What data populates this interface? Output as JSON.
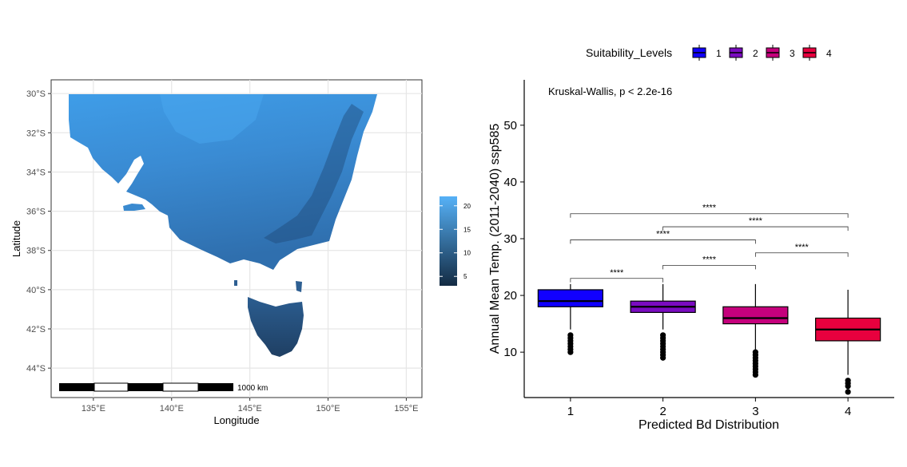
{
  "chart_data": [
    {
      "type": "heatmap",
      "title": "",
      "xlabel": "Longitude",
      "ylabel": "Latitude",
      "x_ticks": [
        "135°E",
        "140°E",
        "145°E",
        "150°E",
        "155°E"
      ],
      "x_tick_values": [
        135,
        140,
        145,
        150,
        155
      ],
      "y_ticks": [
        "30°S",
        "32°S",
        "34°S",
        "36°S",
        "38°S",
        "40°S",
        "42°S",
        "44°S"
      ],
      "y_tick_values": [
        -30,
        -32,
        -34,
        -36,
        -38,
        -40,
        -42,
        -44
      ],
      "xlim": [
        132.3,
        156.0
      ],
      "ylim": [
        -45.5,
        -29.3
      ],
      "grid": true,
      "legend": {
        "position": "right",
        "ticks": [
          "5",
          "10",
          "15",
          "20"
        ],
        "tick_values": [
          5,
          10,
          15,
          20
        ],
        "range": [
          3,
          22
        ],
        "color_low": "#132b43",
        "color_high": "#56b1f7"
      },
      "scalebar": {
        "label": "1000 km"
      }
    },
    {
      "type": "box",
      "title": "",
      "xlabel": "Predicted Bd Distribution",
      "ylabel": "Annual Mean Temp. (2011-2040) ssp585",
      "ylim": [
        2,
        58
      ],
      "y_ticks": [
        "10",
        "20",
        "30",
        "40",
        "50"
      ],
      "y_tick_values": [
        10,
        20,
        30,
        40,
        50
      ],
      "categories": [
        "1",
        "2",
        "3",
        "4"
      ],
      "annotation": "Kruskal-Wallis, p < 2.2e-16",
      "legend": {
        "title": "Suitability_Levels",
        "position": "top",
        "entries": [
          "1",
          "2",
          "3",
          "4"
        ]
      },
      "colors": [
        "#1100ff",
        "#7a0bc0",
        "#c5007c",
        "#e8003e"
      ],
      "boxes": [
        {
          "category": "1",
          "whisker_low": 14,
          "q1": 18,
          "median": 19,
          "q3": 21,
          "whisker_high": 22,
          "outliers": [
            13,
            12.5,
            12,
            11.5,
            11,
            10.5,
            10
          ]
        },
        {
          "category": "2",
          "whisker_low": 14,
          "q1": 17,
          "median": 18,
          "q3": 19,
          "whisker_high": 22,
          "outliers": [
            13,
            12.5,
            12,
            11.5,
            11,
            10.5,
            10,
            9.5,
            9
          ]
        },
        {
          "category": "3",
          "whisker_low": 10.5,
          "q1": 15,
          "median": 16,
          "q3": 18,
          "whisker_high": 22,
          "outliers": [
            10,
            9.5,
            9,
            8.5,
            8,
            7.5,
            7,
            6.5,
            6
          ]
        },
        {
          "category": "4",
          "whisker_low": 6,
          "q1": 12,
          "median": 14,
          "q3": 16,
          "whisker_high": 21,
          "outliers": [
            5,
            4.5,
            4,
            3
          ]
        }
      ],
      "comparisons": [
        {
          "from": "1",
          "to": "2",
          "y": 23,
          "label": "****"
        },
        {
          "from": "2",
          "to": "3",
          "y": 25.3,
          "label": "****"
        },
        {
          "from": "3",
          "to": "4",
          "y": 27.5,
          "label": "****"
        },
        {
          "from": "1",
          "to": "3",
          "y": 29.8,
          "label": "****"
        },
        {
          "from": "2",
          "to": "4",
          "y": 32.1,
          "label": "****"
        },
        {
          "from": "1",
          "to": "4",
          "y": 34.4,
          "label": "****"
        }
      ]
    }
  ]
}
